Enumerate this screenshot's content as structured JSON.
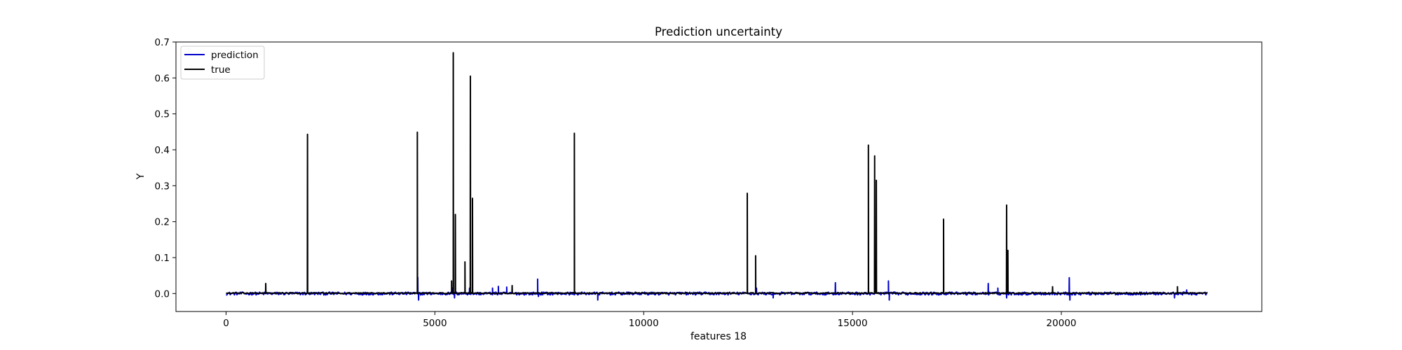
{
  "chart_data": {
    "type": "line",
    "title": "Prediction uncertainty",
    "xlabel": "features 18",
    "ylabel": "Y",
    "xlim": [
      -1200,
      24800
    ],
    "ylim": [
      -0.05,
      0.7
    ],
    "xticks": [
      0,
      5000,
      10000,
      15000,
      20000
    ],
    "yticks": [
      0.0,
      0.1,
      0.2,
      0.3,
      0.4,
      0.5,
      0.6,
      0.7
    ],
    "xtick_labels": [
      "0",
      "5000",
      "10000",
      "15000",
      "20000"
    ],
    "ytick_labels": [
      "0.0",
      "0.1",
      "0.2",
      "0.3",
      "0.4",
      "0.5",
      "0.6",
      "0.7"
    ],
    "grid": false,
    "legend_position": "top-left",
    "n_points": 23500,
    "series": [
      {
        "name": "prediction",
        "color": "#0000cc",
        "baseline": 0.0,
        "noise": 0.004,
        "spikes": [
          [
            4590,
            0.045
          ],
          [
            4610,
            -0.018
          ],
          [
            5420,
            0.015
          ],
          [
            5470,
            -0.012
          ],
          [
            5830,
            0.015
          ],
          [
            6380,
            0.015
          ],
          [
            6520,
            0.02
          ],
          [
            6720,
            0.018
          ],
          [
            7460,
            0.04
          ],
          [
            7480,
            -0.008
          ],
          [
            8900,
            -0.018
          ],
          [
            12700,
            0.015
          ],
          [
            13100,
            -0.012
          ],
          [
            14590,
            0.03
          ],
          [
            15860,
            0.035
          ],
          [
            15880,
            -0.018
          ],
          [
            18250,
            0.028
          ],
          [
            18480,
            0.015
          ],
          [
            18690,
            -0.012
          ],
          [
            20190,
            0.044
          ],
          [
            20205,
            -0.018
          ],
          [
            22710,
            -0.012
          ],
          [
            23000,
            0.01
          ]
        ]
      },
      {
        "name": "true",
        "color": "#000000",
        "baseline": 0.001,
        "noise": 0.0015,
        "spikes": [
          [
            950,
            0.028
          ],
          [
            1950,
            0.443
          ],
          [
            4580,
            0.449
          ],
          [
            5400,
            0.035
          ],
          [
            5440,
            0.67
          ],
          [
            5490,
            0.22
          ],
          [
            5720,
            0.088
          ],
          [
            5850,
            0.605
          ],
          [
            5900,
            0.265
          ],
          [
            6850,
            0.022
          ],
          [
            8340,
            0.446
          ],
          [
            12480,
            0.279
          ],
          [
            12680,
            0.105
          ],
          [
            15380,
            0.413
          ],
          [
            15530,
            0.383
          ],
          [
            15570,
            0.315
          ],
          [
            17180,
            0.207
          ],
          [
            18690,
            0.246
          ],
          [
            18720,
            0.12
          ],
          [
            19790,
            0.019
          ],
          [
            22780,
            0.019
          ]
        ]
      }
    ]
  }
}
